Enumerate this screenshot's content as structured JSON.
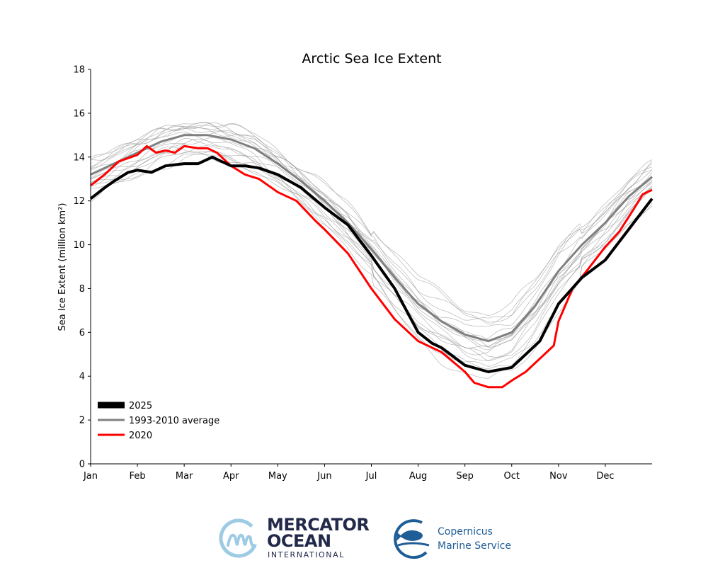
{
  "chart_data": {
    "type": "line",
    "title": "Arctic Sea Ice Extent",
    "xlabel": "",
    "ylabel": "Sea Ice Extent (million km²)",
    "ylim": [
      0,
      18
    ],
    "xlim": [
      0,
      12
    ],
    "yticks": [
      0,
      2,
      4,
      6,
      8,
      10,
      12,
      14,
      16,
      18
    ],
    "xtick_labels": [
      "Jan",
      "Feb",
      "Mar",
      "Apr",
      "May",
      "Jun",
      "Jul",
      "Aug",
      "Sep",
      "Oct",
      "Nov",
      "Dec"
    ],
    "x_units": "months since Jan 1",
    "legend_position": "lower-left",
    "grid": false,
    "series": [
      {
        "name": "2025",
        "color": "#000000",
        "x": [
          0,
          0.3,
          0.5,
          0.8,
          1,
          1.3,
          1.6,
          2,
          2.3,
          2.5,
          2.6,
          2.8,
          3,
          3.3,
          3.6,
          4,
          4.5,
          5,
          5.5,
          6,
          6.5,
          7,
          7.3,
          7.5,
          8,
          8.5,
          9,
          9.3,
          9.6,
          10,
          10.5,
          11,
          11.5,
          12
        ],
        "y": [
          12.1,
          12.6,
          12.9,
          13.3,
          13.4,
          13.3,
          13.6,
          13.7,
          13.7,
          13.9,
          14.0,
          13.8,
          13.6,
          13.6,
          13.5,
          13.2,
          12.6,
          11.7,
          10.9,
          9.5,
          8.0,
          6.0,
          5.5,
          5.3,
          4.5,
          4.2,
          4.4,
          5.0,
          5.6,
          7.3,
          8.5,
          9.3,
          10.7,
          12.1
        ]
      },
      {
        "name": "1993-2010 average",
        "color": "#808080",
        "x": [
          0,
          0.5,
          1,
          1.5,
          2,
          2.5,
          3,
          3.5,
          4,
          4.5,
          5,
          5.5,
          6,
          6.5,
          7,
          7.5,
          8,
          8.5,
          9,
          9.5,
          10,
          10.5,
          11,
          11.5,
          12
        ],
        "y": [
          13.2,
          13.7,
          14.2,
          14.7,
          15.0,
          15.0,
          14.8,
          14.4,
          13.7,
          12.9,
          12.0,
          11.0,
          9.8,
          8.5,
          7.3,
          6.5,
          5.9,
          5.6,
          6.0,
          7.2,
          8.8,
          10.0,
          11.0,
          12.2,
          13.1
        ]
      },
      {
        "name": "2020",
        "color": "#ff0000",
        "x": [
          0,
          0.3,
          0.6,
          1,
          1.2,
          1.4,
          1.6,
          1.8,
          2,
          2.3,
          2.5,
          2.7,
          3,
          3.3,
          3.6,
          4,
          4.4,
          4.8,
          5,
          5.5,
          6,
          6.5,
          7,
          7.5,
          8,
          8.2,
          8.5,
          8.8,
          9,
          9.3,
          9.6,
          9.9,
          10,
          10.3,
          10.6,
          11,
          11.3,
          11.6,
          11.8,
          12
        ],
        "y": [
          12.7,
          13.2,
          13.8,
          14.1,
          14.5,
          14.2,
          14.3,
          14.2,
          14.5,
          14.4,
          14.4,
          14.2,
          13.6,
          13.2,
          13.0,
          12.4,
          12.0,
          11.1,
          10.7,
          9.6,
          8.0,
          6.6,
          5.6,
          5.1,
          4.2,
          3.7,
          3.5,
          3.5,
          3.8,
          4.2,
          4.8,
          5.4,
          6.5,
          8.0,
          8.8,
          9.9,
          10.6,
          11.6,
          12.3,
          12.5
        ]
      }
    ],
    "individual_years_offsets": [
      -1.1,
      -0.8,
      -0.6,
      -0.4,
      -0.25,
      -0.1,
      0.05,
      0.2,
      0.35,
      0.5,
      0.7,
      -0.95,
      -0.5,
      0.15,
      -0.3,
      0.45,
      -0.7,
      0.6
    ]
  },
  "logos": {
    "mercator_line1": "MERCATOR",
    "mercator_line2": "OCEAN",
    "mercator_line3": "INTERNATIONAL",
    "copernicus_line1": "Copernicus",
    "copernicus_line2": "Marine Service"
  }
}
